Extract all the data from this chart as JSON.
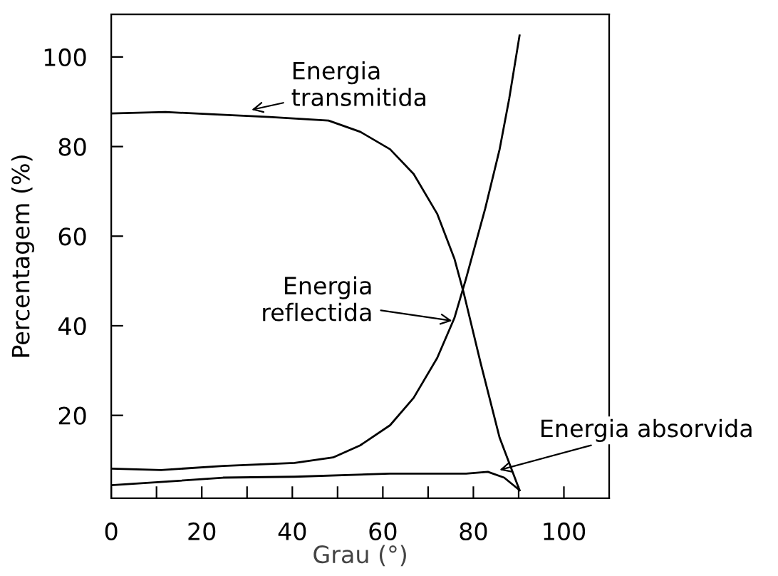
{
  "chart_data": {
    "type": "line",
    "xlabel": "Grau (°)",
    "ylabel": "Percentagem (%)",
    "xlim": [
      0,
      110
    ],
    "ylim": [
      1.5,
      109.5
    ],
    "xticks": [
      0,
      {
        "value": 10,
        "label": null
      },
      20,
      {
        "value": 30,
        "label": null
      },
      40,
      {
        "value": 50,
        "label": null
      },
      60,
      {
        "value": 70,
        "label": null
      },
      80,
      {
        "value": 90,
        "label": null
      },
      100
    ],
    "yticks": [
      20,
      40,
      60,
      80,
      100
    ],
    "grid": false,
    "legend": false,
    "marker": "none",
    "line_style": "solid",
    "series": [
      {
        "color": "#000000",
        "x": [
          0,
          12,
          22.6,
          35,
          48,
          55,
          61.6,
          66.8,
          72,
          75.8,
          77.9,
          81.6,
          85.8,
          90.2
        ],
        "values": [
          87.4,
          87.7,
          87.2,
          86.6,
          85.8,
          83.3,
          79.4,
          73.9,
          65,
          55,
          47.2,
          31.7,
          15,
          3.3
        ]
      },
      {
        "color": "#000000",
        "x": [
          0,
          11,
          24.7,
          40.5,
          49,
          55,
          61.6,
          66.8,
          72,
          75.8,
          78.4,
          82.6,
          85.8,
          87.9,
          90.2
        ],
        "values": [
          8.1,
          7.8,
          8.7,
          9.4,
          10.6,
          13.3,
          17.8,
          23.9,
          32.8,
          41.7,
          50.6,
          66.1,
          79.4,
          90.6,
          104.8
        ]
      },
      {
        "color": "#000000",
        "x": [
          0,
          12.1,
          24.7,
          40.5,
          61.6,
          78.4,
          83.2,
          86.8,
          90.2
        ],
        "values": [
          4.4,
          5.2,
          6.1,
          6.3,
          7,
          7,
          7.4,
          6.1,
          3.3
        ]
      }
    ],
    "annotations": [
      {
        "text": "Energia\ntransmitida",
        "x": 31,
        "y": 88.2
      },
      {
        "text": "Energia\nreflectida",
        "x": 75.3,
        "y": 41.1
      },
      {
        "text": "Energia absorvida",
        "x": 85.8,
        "y": 7.8
      }
    ]
  }
}
